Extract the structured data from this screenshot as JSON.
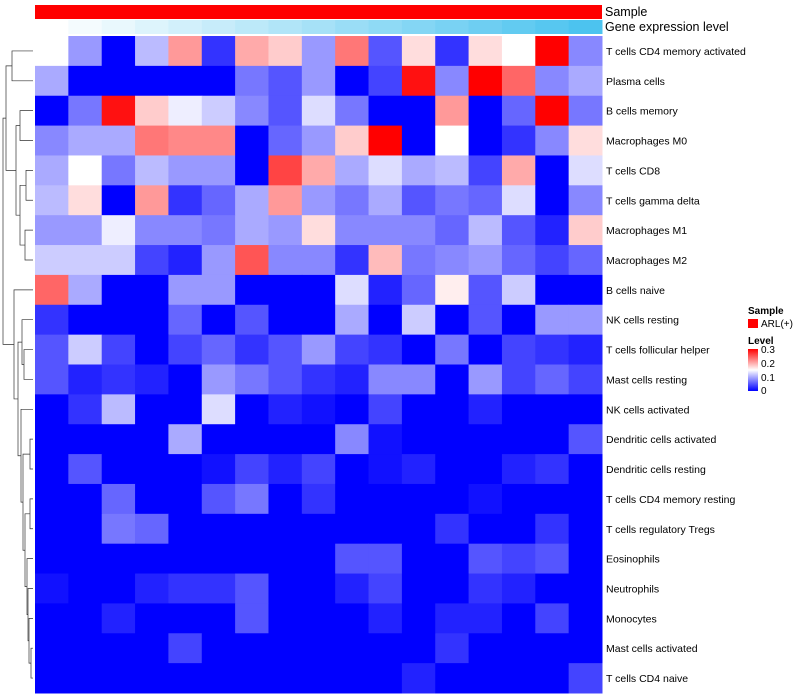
{
  "chart_data": {
    "type": "heatmap",
    "title": "",
    "annotation_tracks": [
      {
        "name": "Sample",
        "color": "#ff0000"
      },
      {
        "name": "Gene expression level",
        "colors": [
          "#ffffff",
          "#4cc3ef"
        ]
      }
    ],
    "rows": [
      "T cells CD4 memory activated",
      "Plasma cells",
      "B cells memory",
      "Macrophages M0",
      "T cells CD8",
      "T cells gamma delta",
      "Macrophages M1",
      "Macrophages M2",
      "B cells naive",
      "NK cells resting",
      "T cells follicular helper",
      "Mast cells resting",
      "NK cells activated",
      "Dendritic cells activated",
      "Dendritic cells resting",
      "T cells CD4 memory resting",
      "T cells regulatory  Tregs",
      "Eosinophils",
      "Neutrophils",
      "Monocytes",
      "Mast cells activated",
      "T cells CD4 naive"
    ],
    "num_columns": 17,
    "values": [
      [
        0.15,
        0.09,
        0.0,
        0.11,
        0.21,
        0.03,
        0.2,
        0.18,
        0.09,
        0.23,
        0.05,
        0.17,
        0.03,
        0.17,
        0.15,
        0.3,
        0.08
      ],
      [
        0.1,
        0.0,
        0.0,
        0.0,
        0.0,
        0.0,
        0.07,
        0.05,
        0.09,
        0.0,
        0.04,
        0.29,
        0.08,
        0.3,
        0.24,
        0.08,
        0.1
      ],
      [
        0.0,
        0.07,
        0.29,
        0.18,
        0.14,
        0.12,
        0.08,
        0.05,
        0.13,
        0.07,
        0.0,
        0.0,
        0.21,
        0.0,
        0.06,
        0.3,
        0.07
      ],
      [
        0.08,
        0.1,
        0.1,
        0.23,
        0.22,
        0.22,
        0.0,
        0.06,
        0.09,
        0.18,
        0.3,
        0.0,
        0.15,
        0.0,
        0.03,
        0.08,
        0.17
      ],
      [
        0.1,
        0.15,
        0.07,
        0.11,
        0.09,
        0.09,
        0.0,
        0.26,
        0.2,
        0.1,
        0.13,
        0.1,
        0.11,
        0.04,
        0.2,
        0.0,
        0.13
      ],
      [
        0.11,
        0.17,
        0.0,
        0.21,
        0.03,
        0.06,
        0.1,
        0.21,
        0.09,
        0.07,
        0.1,
        0.05,
        0.07,
        0.06,
        0.13,
        0.0,
        0.08
      ],
      [
        0.09,
        0.09,
        0.14,
        0.08,
        0.08,
        0.07,
        0.1,
        0.09,
        0.17,
        0.08,
        0.08,
        0.08,
        0.06,
        0.11,
        0.05,
        0.02,
        0.18
      ],
      [
        0.12,
        0.12,
        0.12,
        0.04,
        0.02,
        0.09,
        0.25,
        0.08,
        0.08,
        0.03,
        0.19,
        0.07,
        0.08,
        0.09,
        0.06,
        0.04,
        0.06
      ],
      [
        0.24,
        0.1,
        0.0,
        0.0,
        0.09,
        0.09,
        0.0,
        0.0,
        0.0,
        0.13,
        0.02,
        0.06,
        0.16,
        0.05,
        0.12,
        0.0,
        0.0
      ],
      [
        0.03,
        0.0,
        0.0,
        0.0,
        0.06,
        0.0,
        0.05,
        0.0,
        0.0,
        0.1,
        0.0,
        0.12,
        0.0,
        0.05,
        0.0,
        0.09,
        0.09
      ],
      [
        0.05,
        0.12,
        0.04,
        0.0,
        0.04,
        0.06,
        0.03,
        0.05,
        0.09,
        0.04,
        0.03,
        0.0,
        0.07,
        0.0,
        0.04,
        0.03,
        0.02
      ],
      [
        0.05,
        0.02,
        0.03,
        0.02,
        0.0,
        0.09,
        0.07,
        0.05,
        0.03,
        0.02,
        0.08,
        0.08,
        0.0,
        0.09,
        0.04,
        0.06,
        0.04
      ],
      [
        0.0,
        0.03,
        0.11,
        0.0,
        0.0,
        0.13,
        0.0,
        0.02,
        0.01,
        0.0,
        0.04,
        0.0,
        0.0,
        0.02,
        0.0,
        0.0,
        0.0
      ],
      [
        0.0,
        0.0,
        0.0,
        0.0,
        0.1,
        0.0,
        0.0,
        0.0,
        0.0,
        0.08,
        0.01,
        0.0,
        0.0,
        0.0,
        0.0,
        0.0,
        0.05
      ],
      [
        0.0,
        0.05,
        0.0,
        0.0,
        0.0,
        0.01,
        0.04,
        0.02,
        0.04,
        0.0,
        0.01,
        0.02,
        0.0,
        0.0,
        0.02,
        0.03,
        0.0
      ],
      [
        0.0,
        0.0,
        0.06,
        0.0,
        0.0,
        0.05,
        0.07,
        0.0,
        0.03,
        0.0,
        0.0,
        0.0,
        0.0,
        0.01,
        0.0,
        0.0,
        0.0
      ],
      [
        0.0,
        0.0,
        0.07,
        0.06,
        0.0,
        0.0,
        0.0,
        0.0,
        0.0,
        0.0,
        0.0,
        0.0,
        0.03,
        0.0,
        0.0,
        0.03,
        0.0
      ],
      [
        0.0,
        0.0,
        0.0,
        0.0,
        0.0,
        0.0,
        0.0,
        0.0,
        0.0,
        0.05,
        0.05,
        0.0,
        0.0,
        0.05,
        0.04,
        0.05,
        0.0
      ],
      [
        0.01,
        0.0,
        0.0,
        0.02,
        0.03,
        0.03,
        0.05,
        0.0,
        0.0,
        0.02,
        0.04,
        0.0,
        0.0,
        0.03,
        0.02,
        0.0,
        0.0
      ],
      [
        0.0,
        0.0,
        0.02,
        0.0,
        0.0,
        0.0,
        0.05,
        0.0,
        0.0,
        0.0,
        0.02,
        0.0,
        0.02,
        0.02,
        0.0,
        0.04,
        0.0
      ],
      [
        0.0,
        0.0,
        0.0,
        0.0,
        0.04,
        0.0,
        0.0,
        0.0,
        0.0,
        0.0,
        0.0,
        0.0,
        0.03,
        0.0,
        0.0,
        0.0,
        0.0
      ],
      [
        0.0,
        0.0,
        0.0,
        0.0,
        0.0,
        0.0,
        0.0,
        0.0,
        0.0,
        0.0,
        0.0,
        0.02,
        0.0,
        0.0,
        0.0,
        0.0,
        0.04
      ]
    ],
    "color_scale": {
      "min": 0,
      "mid": 0.15,
      "max": 0.3,
      "low": "#0000ff",
      "middle": "#ffffff",
      "high": "#ff0000"
    },
    "legend": {
      "position": "right",
      "sample_title": "Sample",
      "sample_entry": "ARL(+)",
      "level_title": "Level",
      "level_ticks": [
        "0.3",
        "0.2",
        "0.1",
        "0"
      ]
    },
    "row_dendrogram": true
  }
}
